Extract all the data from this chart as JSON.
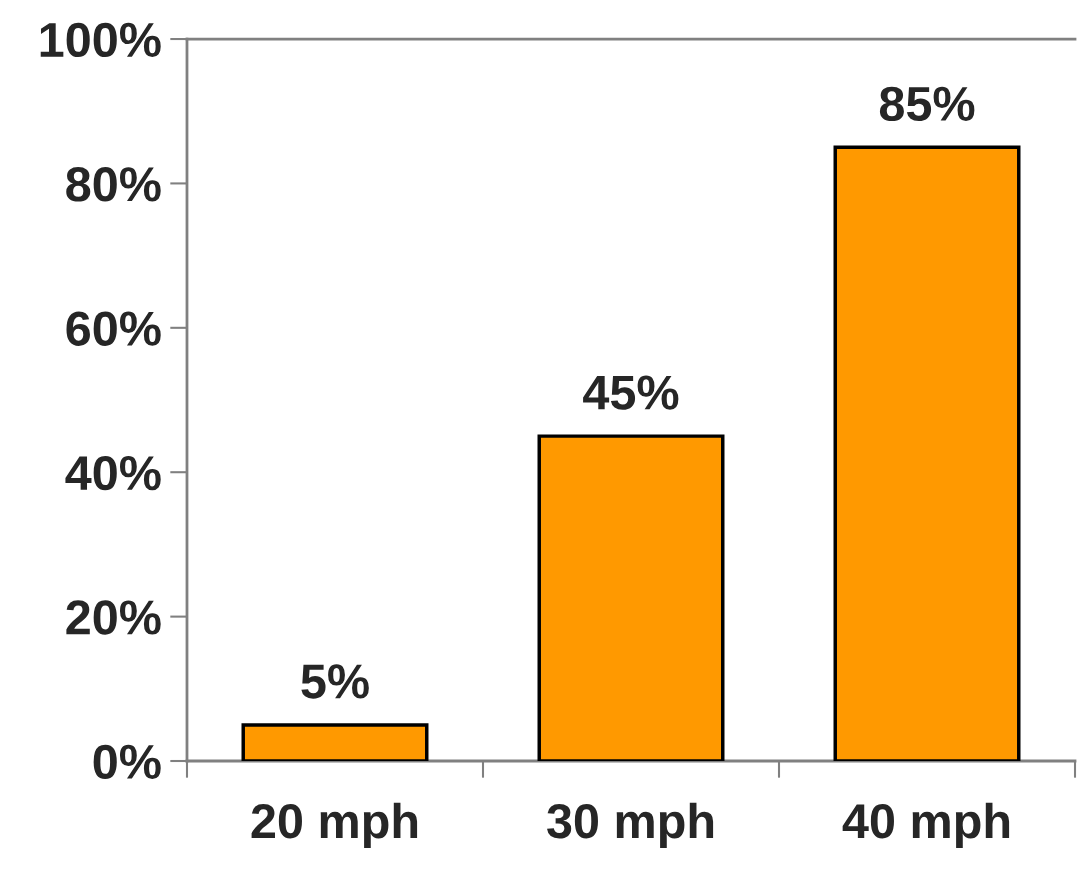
{
  "chart_data": {
    "type": "bar",
    "categories": [
      "20 mph",
      "30 mph",
      "40 mph"
    ],
    "values": [
      5,
      45,
      85
    ],
    "color": "#ff9900",
    "ylim": [
      0,
      100
    ],
    "yticks": [
      {
        "value": 0,
        "label": "0%"
      },
      {
        "value": 20,
        "label": "20%"
      },
      {
        "value": 40,
        "label": "40%"
      },
      {
        "value": 60,
        "label": "60%"
      },
      {
        "value": 80,
        "label": "80%"
      },
      {
        "value": 100,
        "label": "100%"
      }
    ],
    "value_labels": [
      "5%",
      "45%",
      "85%"
    ],
    "grid": false,
    "legend": false
  }
}
